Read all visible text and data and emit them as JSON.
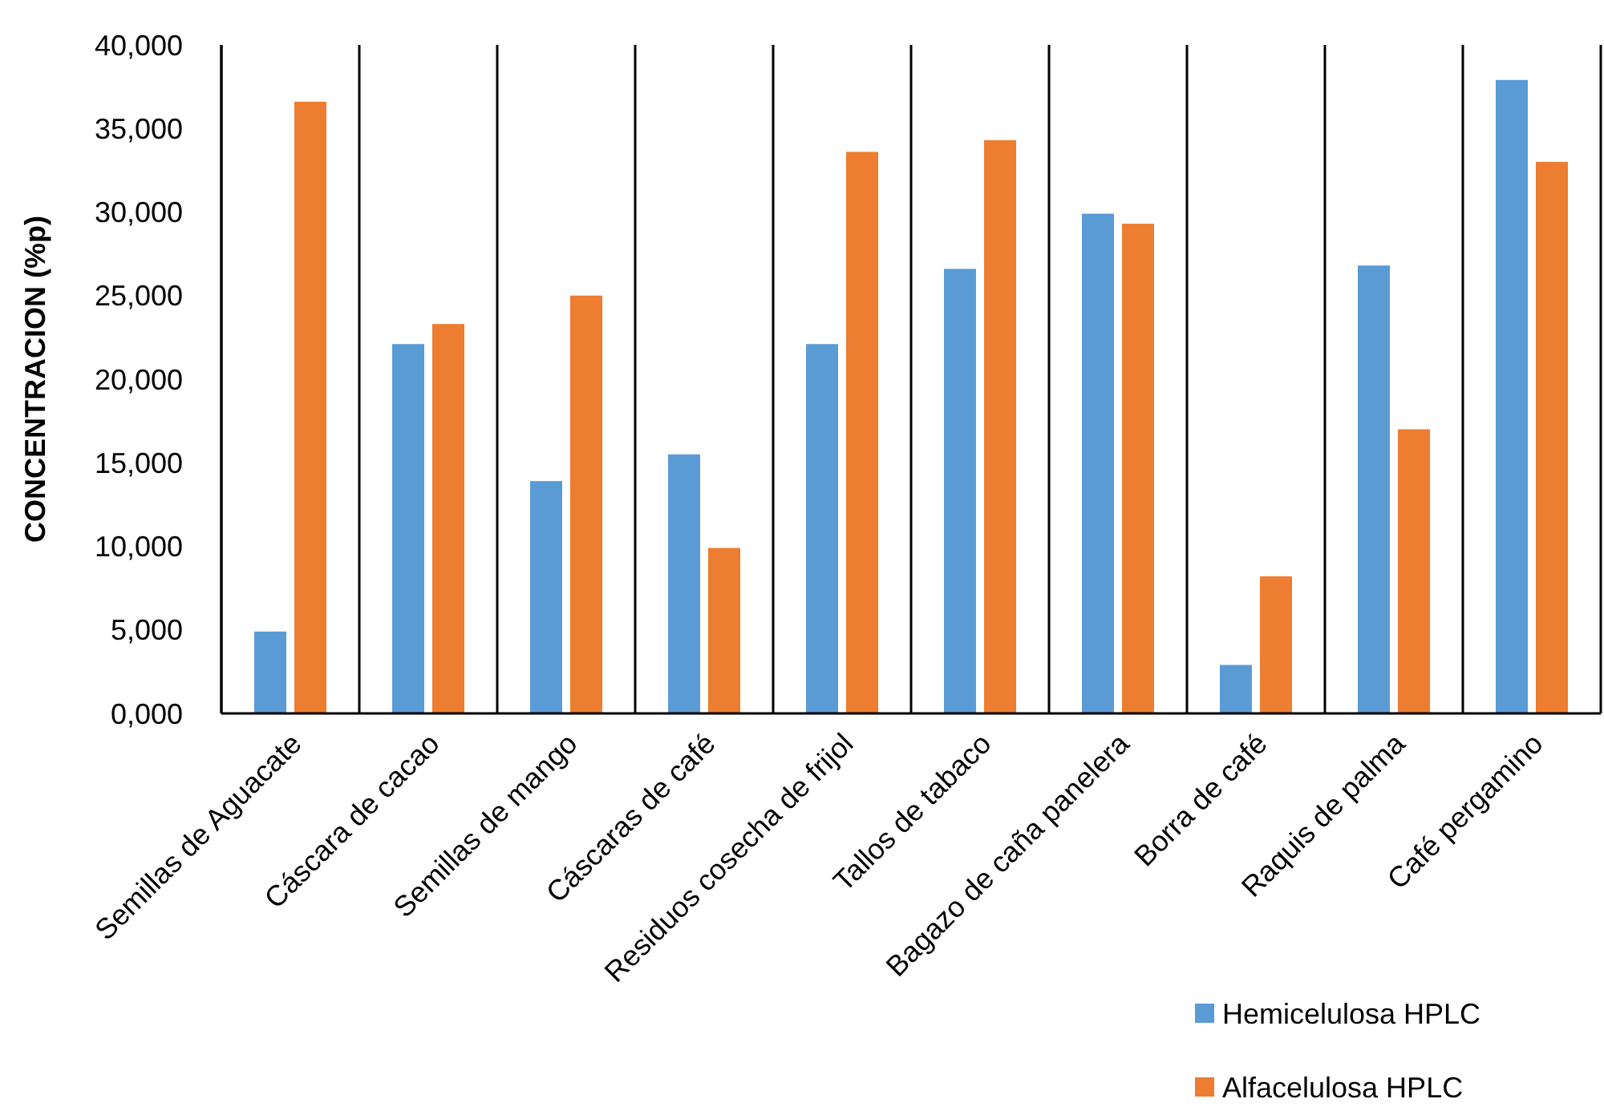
{
  "chart_data": {
    "type": "bar",
    "ylabel": "CONCENTRACION (%p)",
    "categories": [
      "Semillas de Aguacate",
      "Cáscara de cacao",
      "Semillas de mango",
      "Cáscaras de café",
      "Residuos cosecha de frijol",
      "Tallos de tabaco",
      "Bagazo de caña panelera",
      "Borra de café",
      "Raquis de palma",
      "Café pergamino"
    ],
    "series": [
      {
        "name": "Hemicelulosa HPLC",
        "color": "#5b9bd5",
        "values": [
          4900,
          22100,
          13900,
          15500,
          22100,
          26600,
          29900,
          2900,
          26800,
          37900
        ]
      },
      {
        "name": "Alfacelulosa HPLC",
        "color": "#ed7d31",
        "values": [
          36600,
          23300,
          25000,
          9900,
          33600,
          34300,
          29300,
          8200,
          17000,
          33000
        ]
      }
    ],
    "ylim": [
      0,
      40000
    ],
    "yticks": [
      {
        "value": 0,
        "label": "0,000"
      },
      {
        "value": 5000,
        "label": "5,000"
      },
      {
        "value": 10000,
        "label": "10,000"
      },
      {
        "value": 15000,
        "label": "15,000"
      },
      {
        "value": 20000,
        "label": "20,000"
      },
      {
        "value": 25000,
        "label": "25,000"
      },
      {
        "value": 30000,
        "label": "30,000"
      },
      {
        "value": 35000,
        "label": "35,000"
      },
      {
        "value": 40000,
        "label": "40,000"
      }
    ],
    "grid": "x",
    "legend": "bottom right"
  }
}
